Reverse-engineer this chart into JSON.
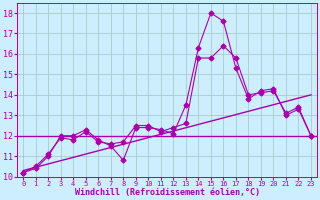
{
  "xlabel": "Windchill (Refroidissement éolien,°C)",
  "bg_color": "#cceeff",
  "grid_color": "#aacccc",
  "line_color": "#aa00aa",
  "xlim": [
    -0.5,
    23.5
  ],
  "ylim": [
    10,
    18.5
  ],
  "yticks": [
    10,
    11,
    12,
    13,
    14,
    15,
    16,
    17,
    18
  ],
  "xticks": [
    0,
    1,
    2,
    3,
    4,
    5,
    6,
    7,
    8,
    9,
    10,
    11,
    12,
    13,
    14,
    15,
    16,
    17,
    18,
    19,
    20,
    21,
    22,
    23
  ],
  "series1_x": [
    0,
    1,
    2,
    3,
    4,
    5,
    6,
    7,
    8,
    9,
    10,
    11,
    12,
    13,
    14,
    15,
    16,
    17,
    18,
    19,
    20,
    21,
    22,
    23
  ],
  "series1_y": [
    10.2,
    10.4,
    11.0,
    12.0,
    12.0,
    12.3,
    11.8,
    11.5,
    10.8,
    12.4,
    12.4,
    12.3,
    12.1,
    13.5,
    16.3,
    18.0,
    17.6,
    15.3,
    13.8,
    14.2,
    14.3,
    13.0,
    13.3,
    12.0
  ],
  "series2_x": [
    0,
    1,
    2,
    3,
    4,
    5,
    6,
    7,
    8,
    9,
    10,
    11,
    12,
    13,
    14,
    15,
    16,
    17,
    18,
    19,
    20,
    21,
    22,
    23
  ],
  "series2_y": [
    10.2,
    10.5,
    11.1,
    11.9,
    11.8,
    12.2,
    11.7,
    11.6,
    11.7,
    12.5,
    12.5,
    12.2,
    12.4,
    12.6,
    15.8,
    15.8,
    16.4,
    15.8,
    14.0,
    14.1,
    14.2,
    13.1,
    13.4,
    12.0
  ],
  "trend_x": [
    0,
    23
  ],
  "trend_y": [
    10.3,
    14.0
  ],
  "flat_y": 12.0
}
